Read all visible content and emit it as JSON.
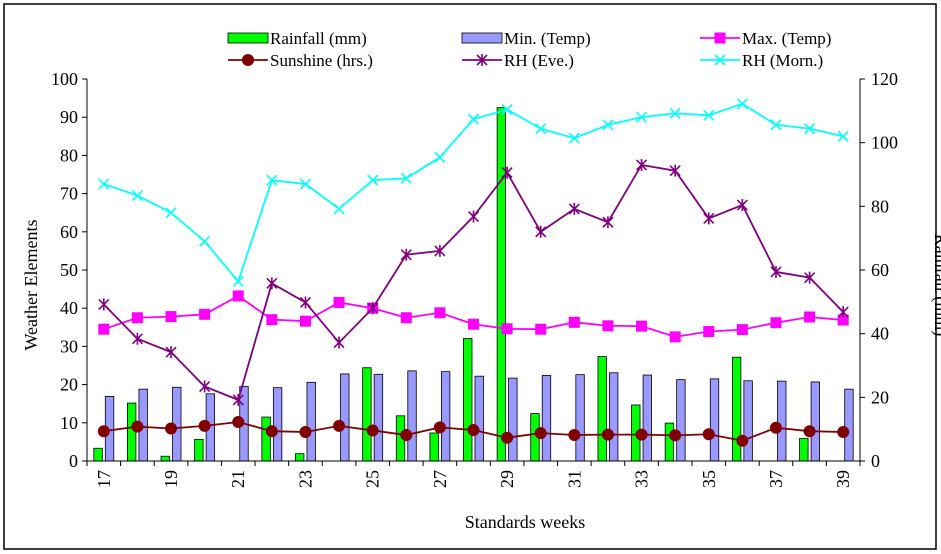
{
  "chart_data": {
    "type": "bar+line",
    "xlabel": "Standards weeks",
    "ylabel": "Weather Elements",
    "y2label": "Rainfall (mm)",
    "ylim": [
      0,
      100
    ],
    "y2lim": [
      0,
      120
    ],
    "yticks": [
      0,
      10,
      20,
      30,
      40,
      50,
      60,
      70,
      80,
      90,
      100
    ],
    "y2ticks": [
      0,
      20,
      40,
      60,
      80,
      100,
      120
    ],
    "x": [
      17,
      18,
      19,
      20,
      21,
      22,
      23,
      24,
      25,
      26,
      27,
      28,
      29,
      30,
      31,
      32,
      33,
      34,
      35,
      36,
      37,
      38,
      39
    ],
    "xticks": [
      17,
      19,
      21,
      23,
      25,
      27,
      29,
      31,
      33,
      35,
      37,
      39
    ],
    "legend_position": "top",
    "grid": false,
    "series": [
      {
        "name": "Rainfall (mm)",
        "kind": "bar",
        "axis": "right",
        "color": "#00ff00",
        "values": [
          4,
          18.2,
          1.5,
          6.8,
          0,
          13.8,
          2.3,
          0,
          29.3,
          14.2,
          8.8,
          38.5,
          111,
          14.9,
          0,
          32.8,
          17.6,
          11.9,
          0,
          32.6,
          0,
          7.1,
          0
        ]
      },
      {
        "name": "Min.  (Temp)",
        "kind": "bar",
        "axis": "left",
        "color": "#9999ff",
        "values": [
          16.9,
          18.8,
          19.3,
          17.6,
          19.5,
          19.2,
          20.6,
          22.8,
          22.7,
          23.6,
          23.4,
          22.2,
          21.7,
          22.4,
          22.6,
          23.1,
          22.5,
          21.3,
          21.5,
          21,
          20.9,
          20.7,
          18.8
        ]
      },
      {
        "name": "Max. (Temp)",
        "kind": "line",
        "axis": "left",
        "color": "#ff00ff",
        "marker": "square",
        "values": [
          34.5,
          37.5,
          37.8,
          38.4,
          43.2,
          37,
          36.6,
          41.5,
          40,
          37.5,
          38.8,
          35.8,
          34.6,
          34.5,
          36.3,
          35.4,
          35.3,
          32.5,
          33.9,
          34.4,
          36.2,
          37.7,
          36.9
        ]
      },
      {
        "name": "Sunshine (hrs.)",
        "kind": "line",
        "axis": "left",
        "color": "#800000",
        "marker": "circle",
        "values": [
          7.8,
          9,
          8.5,
          9.2,
          10.2,
          7.8,
          7.6,
          9.2,
          8,
          6.8,
          8.8,
          8.1,
          6.1,
          7.3,
          6.8,
          6.9,
          6.9,
          6.7,
          7,
          5.3,
          8.7,
          7.8,
          7.6
        ]
      },
      {
        "name": "RH (Eve.)",
        "kind": "line",
        "axis": "left",
        "color": "#800080",
        "marker": "star",
        "values": [
          41,
          32,
          28.5,
          19.5,
          16,
          46.5,
          41.5,
          31,
          40,
          54,
          55,
          64,
          75.5,
          60,
          66,
          62.5,
          77.5,
          76,
          63.5,
          67,
          49.5,
          48,
          39
        ]
      },
      {
        "name": "RH (Morn.)",
        "kind": "line",
        "axis": "left",
        "color": "#00ffff",
        "marker": "x",
        "values": [
          72.5,
          69.5,
          65,
          57.5,
          47,
          73.5,
          72.5,
          66,
          73.5,
          74,
          79.5,
          89.5,
          92,
          87,
          84.5,
          88,
          90,
          91,
          90.5,
          93.5,
          88,
          87,
          85
        ]
      }
    ]
  }
}
